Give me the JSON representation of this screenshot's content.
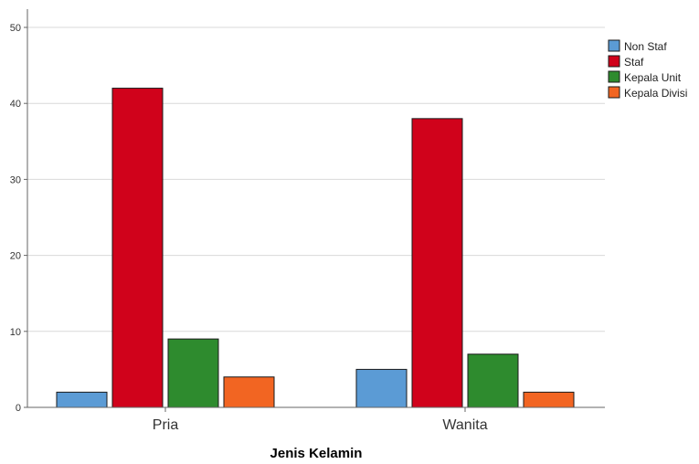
{
  "chart_data": {
    "type": "bar",
    "title": "",
    "xlabel": "Jenis Kelamin",
    "ylabel": "",
    "categories": [
      "Pria",
      "Wanita"
    ],
    "series": [
      {
        "name": "Non Staf",
        "values": [
          2,
          5
        ],
        "color": "#5b9bd5"
      },
      {
        "name": "Staf",
        "values": [
          42,
          38
        ],
        "color": "#d0021b"
      },
      {
        "name": "Kepala Unit",
        "values": [
          9,
          7
        ],
        "color": "#2e8b2e"
      },
      {
        "name": "Kepala Divisi",
        "values": [
          4,
          2
        ],
        "color": "#f26522"
      }
    ],
    "ylim": [
      0,
      50
    ],
    "yticks": [
      "0",
      "10",
      "20",
      "30",
      "40",
      "50"
    ],
    "grid": true,
    "legend_position": "right"
  }
}
